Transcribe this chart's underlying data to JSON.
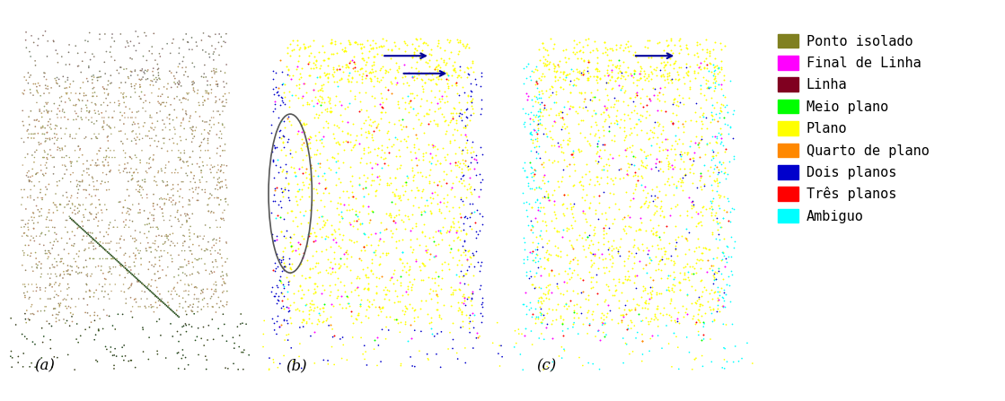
{
  "legend_items": [
    {
      "label": "Ponto isolado",
      "color": "#808020"
    },
    {
      "label": "Final de Linha",
      "color": "#ff00ff"
    },
    {
      "label": "Linha",
      "color": "#800020"
    },
    {
      "label": "Meio plano",
      "color": "#00ff00"
    },
    {
      "label": "Plano",
      "color": "#ffff00"
    },
    {
      "label": "Quarto de plano",
      "color": "#ff8800"
    },
    {
      "label": "Dois planos",
      "color": "#0000cc"
    },
    {
      "label": "Três planos",
      "color": "#ff0000"
    },
    {
      "label": "Ambiguo",
      "color": "#00ffff"
    }
  ],
  "subplot_labels": [
    "(a)",
    "(b)",
    "(c)"
  ],
  "background_color": "#ffffff",
  "legend_fontsize": 11,
  "label_fontsize": 12,
  "fig_width": 11.19,
  "fig_height": 4.47
}
